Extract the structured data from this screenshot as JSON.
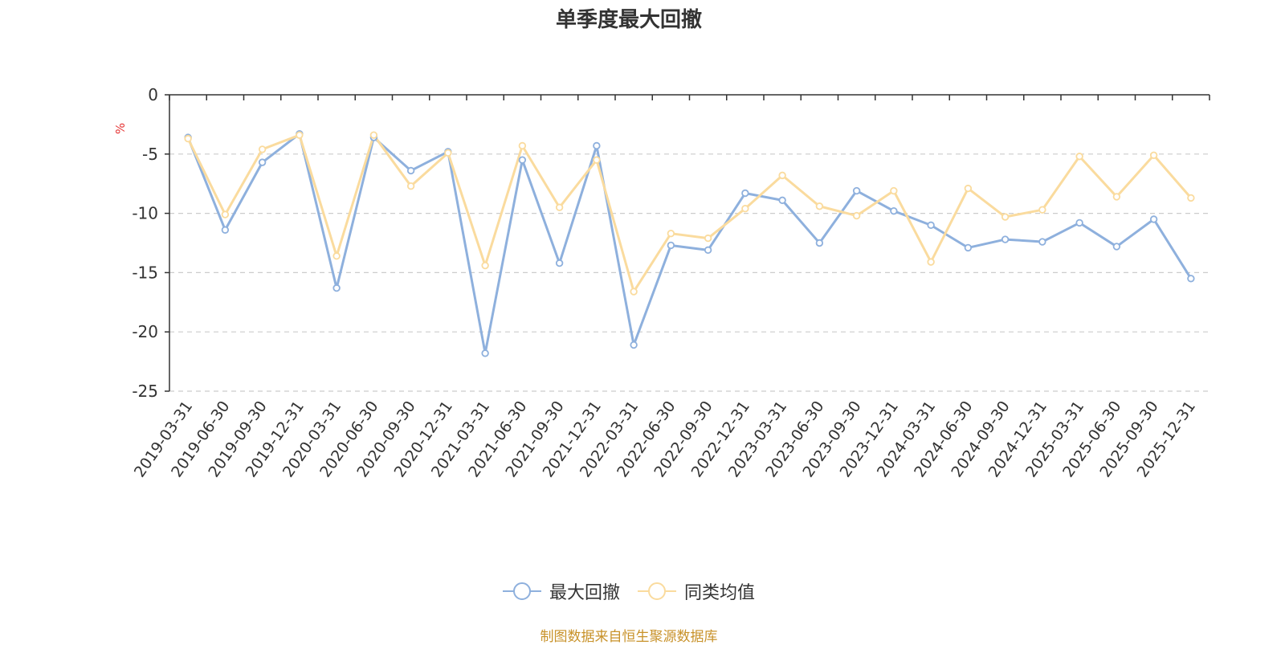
{
  "colors": {
    "series_1": "#8eb0dd",
    "series_2": "#fadb9e",
    "axis": "#333333",
    "grid": "#cccccc",
    "unit": "#e53333",
    "source": "#c8922a"
  },
  "chart_data": {
    "type": "line",
    "title": "单季度最大回撤",
    "ylabel": "%",
    "xlabel": "",
    "ylim": [
      -25,
      0
    ],
    "yticks": [
      0,
      -5,
      -10,
      -15,
      -20,
      -25
    ],
    "grid": true,
    "legend": "bottom-center",
    "categories": [
      "2019-03-31",
      "2019-06-30",
      "2019-09-30",
      "2019-12-31",
      "2020-03-31",
      "2020-06-30",
      "2020-09-30",
      "2020-12-31",
      "2021-03-31",
      "2021-06-30",
      "2021-09-30",
      "2021-12-31",
      "2022-03-31",
      "2022-06-30",
      "2022-09-30",
      "2022-12-31",
      "2023-03-31",
      "2023-06-30",
      "2023-09-30",
      "2023-12-31",
      "2024-03-31",
      "2024-06-30",
      "2024-09-30",
      "2024-12-31",
      "2025-03-31",
      "2025-06-30",
      "2025-09-30",
      "2025-12-31"
    ],
    "series": [
      {
        "name": "最大回撤",
        "color": "#8eb0dd",
        "values": [
          -3.6,
          -11.4,
          -5.7,
          -3.3,
          -16.3,
          -3.6,
          -6.4,
          -4.8,
          -21.8,
          -5.5,
          -14.2,
          -4.3,
          -21.1,
          -12.7,
          -13.1,
          -8.3,
          -8.9,
          -12.5,
          -8.1,
          -9.8,
          -11.0,
          -12.9,
          -12.2,
          -12.4,
          -10.8,
          -12.8,
          -10.5,
          -15.5
        ]
      },
      {
        "name": "同类均值",
        "color": "#fadb9e",
        "values": [
          -3.7,
          -10.1,
          -4.6,
          -3.4,
          -13.6,
          -3.4,
          -7.7,
          -4.9,
          -14.4,
          -4.3,
          -9.5,
          -5.5,
          -16.6,
          -11.7,
          -12.1,
          -9.6,
          -6.8,
          -9.4,
          -10.2,
          -8.1,
          -14.1,
          -7.9,
          -10.3,
          -9.7,
          -5.2,
          -8.6,
          -5.1,
          -8.7
        ]
      }
    ]
  },
  "source_text": "制图数据来自恒生聚源数据库"
}
